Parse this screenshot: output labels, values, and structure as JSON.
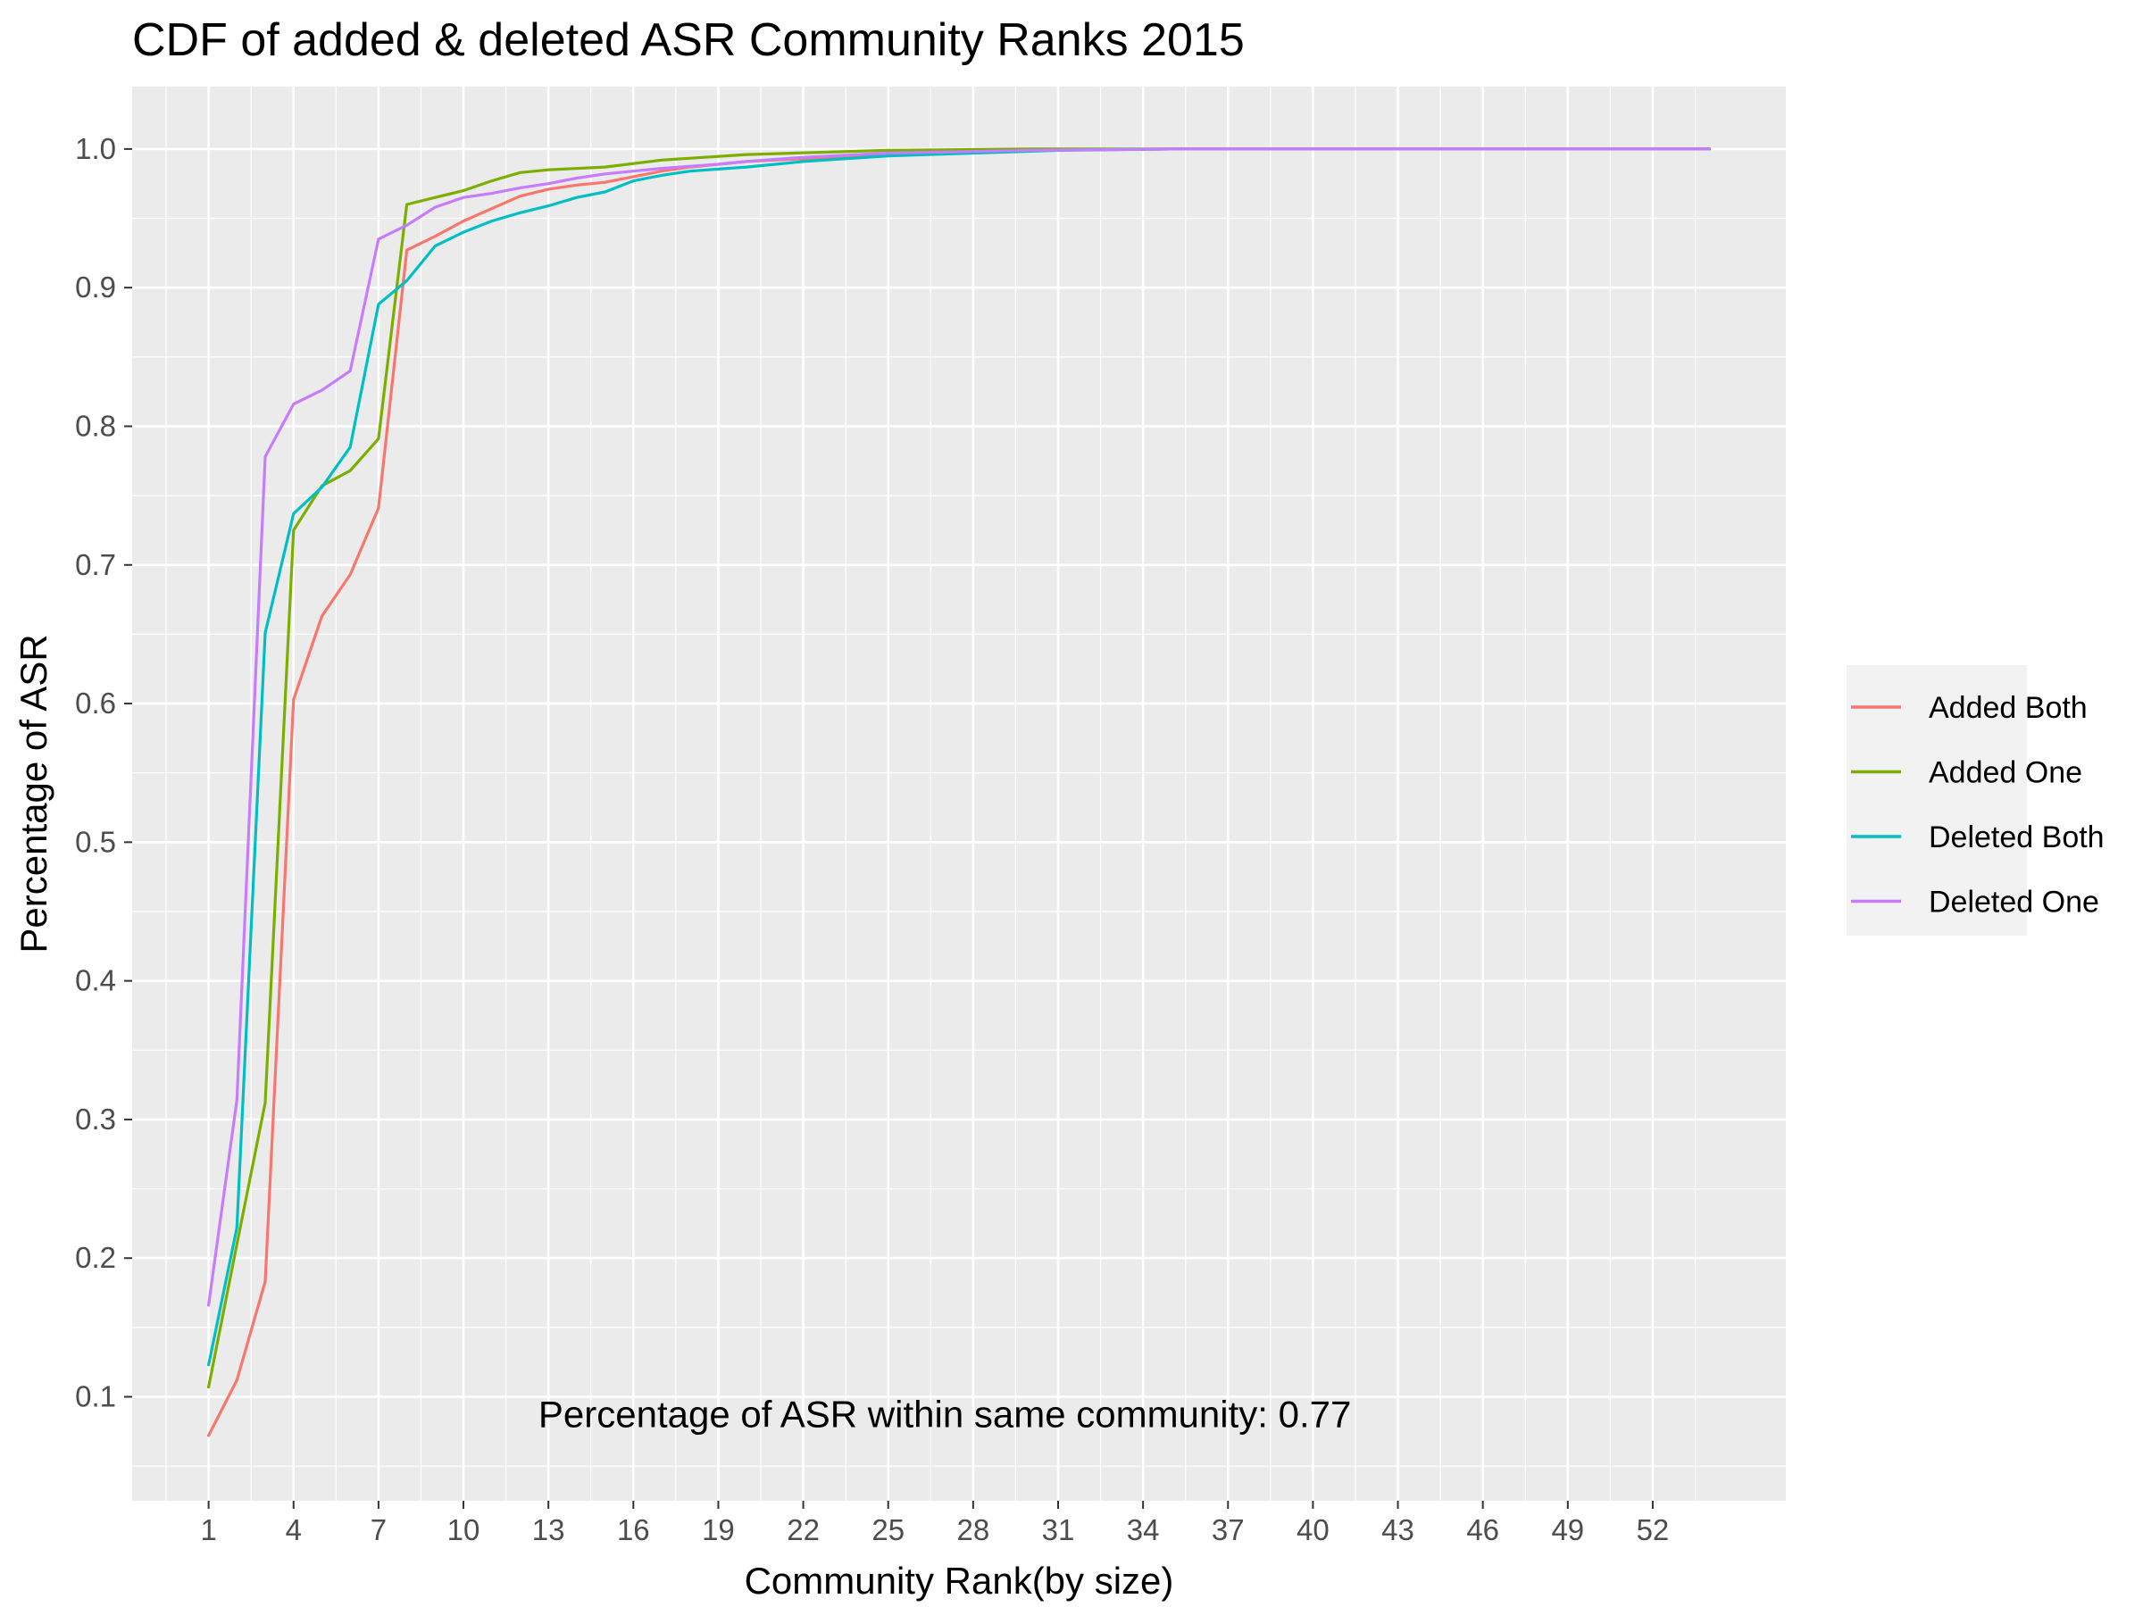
{
  "chart_data": {
    "type": "line",
    "title": "CDF of added & deleted ASR Community Ranks 2015",
    "xlabel": "Community Rank(by size)",
    "ylabel": "Percentage of ASR",
    "xlim": [
      -1.7,
      56.7
    ],
    "ylim": [
      0.025,
      1.045
    ],
    "x_ticks": [
      1,
      4,
      7,
      10,
      13,
      16,
      19,
      22,
      25,
      28,
      31,
      34,
      37,
      40,
      43,
      46,
      49,
      52
    ],
    "y_ticks": [
      0.1,
      0.2,
      0.3,
      0.4,
      0.5,
      0.6,
      0.7,
      0.8,
      0.9,
      1.0
    ],
    "y_tick_labels": [
      "0.1",
      "0.2",
      "0.3",
      "0.4",
      "0.5",
      "0.6",
      "0.7",
      "0.8",
      "0.9",
      "1.0"
    ],
    "grid": true,
    "legend_position": "right",
    "annotation": "Percentage of ASR within same community: 0.77",
    "annotation_at": [
      27,
      0.078
    ],
    "series": [
      {
        "name": "Added Both",
        "color": "#F8766D",
        "points": [
          [
            1,
            0.072
          ],
          [
            2,
            0.112
          ],
          [
            3,
            0.183
          ],
          [
            4,
            0.603
          ],
          [
            5,
            0.663
          ],
          [
            6,
            0.693
          ],
          [
            7,
            0.741
          ],
          [
            8,
            0.927
          ],
          [
            9,
            0.937
          ],
          [
            10,
            0.948
          ],
          [
            11,
            0.957
          ],
          [
            12,
            0.966
          ],
          [
            13,
            0.971
          ],
          [
            14,
            0.974
          ],
          [
            15,
            0.976
          ],
          [
            16,
            0.98
          ],
          [
            17,
            0.984
          ],
          [
            18,
            0.987
          ],
          [
            19,
            0.989
          ],
          [
            20,
            0.991
          ],
          [
            22,
            0.993
          ],
          [
            25,
            0.996
          ],
          [
            30,
            0.999
          ],
          [
            35,
            1.0
          ],
          [
            54,
            1.0
          ]
        ]
      },
      {
        "name": "Added One",
        "color": "#7CAE00",
        "points": [
          [
            1,
            0.107
          ],
          [
            2,
            0.21
          ],
          [
            3,
            0.312
          ],
          [
            4,
            0.725
          ],
          [
            5,
            0.757
          ],
          [
            6,
            0.768
          ],
          [
            7,
            0.791
          ],
          [
            8,
            0.96
          ],
          [
            9,
            0.965
          ],
          [
            10,
            0.97
          ],
          [
            11,
            0.977
          ],
          [
            12,
            0.983
          ],
          [
            13,
            0.985
          ],
          [
            15,
            0.987
          ],
          [
            17,
            0.992
          ],
          [
            20,
            0.996
          ],
          [
            25,
            0.999
          ],
          [
            30,
            1.0
          ],
          [
            54,
            1.0
          ]
        ]
      },
      {
        "name": "Deleted Both",
        "color": "#00BFC4",
        "points": [
          [
            1,
            0.123
          ],
          [
            2,
            0.222
          ],
          [
            3,
            0.651
          ],
          [
            4,
            0.737
          ],
          [
            5,
            0.756
          ],
          [
            6,
            0.785
          ],
          [
            7,
            0.888
          ],
          [
            8,
            0.905
          ],
          [
            9,
            0.93
          ],
          [
            10,
            0.94
          ],
          [
            11,
            0.948
          ],
          [
            12,
            0.954
          ],
          [
            13,
            0.959
          ],
          [
            14,
            0.965
          ],
          [
            15,
            0.969
          ],
          [
            16,
            0.977
          ],
          [
            17,
            0.981
          ],
          [
            18,
            0.984
          ],
          [
            20,
            0.987
          ],
          [
            22,
            0.991
          ],
          [
            25,
            0.995
          ],
          [
            28,
            0.997
          ],
          [
            31,
            0.999
          ],
          [
            35,
            1.0
          ],
          [
            54,
            1.0
          ]
        ]
      },
      {
        "name": "Deleted One",
        "color": "#C77CFF",
        "points": [
          [
            1,
            0.166
          ],
          [
            2,
            0.314
          ],
          [
            3,
            0.778
          ],
          [
            4,
            0.816
          ],
          [
            5,
            0.826
          ],
          [
            6,
            0.84
          ],
          [
            7,
            0.935
          ],
          [
            8,
            0.945
          ],
          [
            9,
            0.958
          ],
          [
            10,
            0.965
          ],
          [
            11,
            0.968
          ],
          [
            12,
            0.972
          ],
          [
            13,
            0.975
          ],
          [
            14,
            0.979
          ],
          [
            15,
            0.982
          ],
          [
            16,
            0.984
          ],
          [
            17,
            0.986
          ],
          [
            19,
            0.989
          ],
          [
            20,
            0.991
          ],
          [
            22,
            0.994
          ],
          [
            25,
            0.997
          ],
          [
            30,
            0.999
          ],
          [
            35,
            1.0
          ],
          [
            54,
            1.0
          ]
        ]
      }
    ]
  }
}
